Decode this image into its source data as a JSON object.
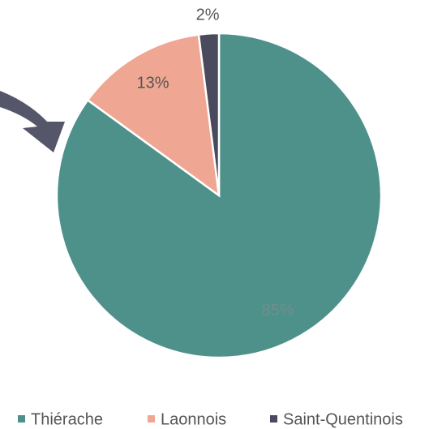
{
  "chart_data": {
    "type": "pie",
    "categories": [
      "Thiérache",
      "Laonnois",
      "Saint-Quentinois"
    ],
    "values": [
      85,
      13,
      2
    ],
    "value_labels": [
      "85%",
      "13%",
      "2%"
    ],
    "colors": [
      "#4e918b",
      "#efa793",
      "#4a4a5e"
    ],
    "legend": "bottom"
  }
}
